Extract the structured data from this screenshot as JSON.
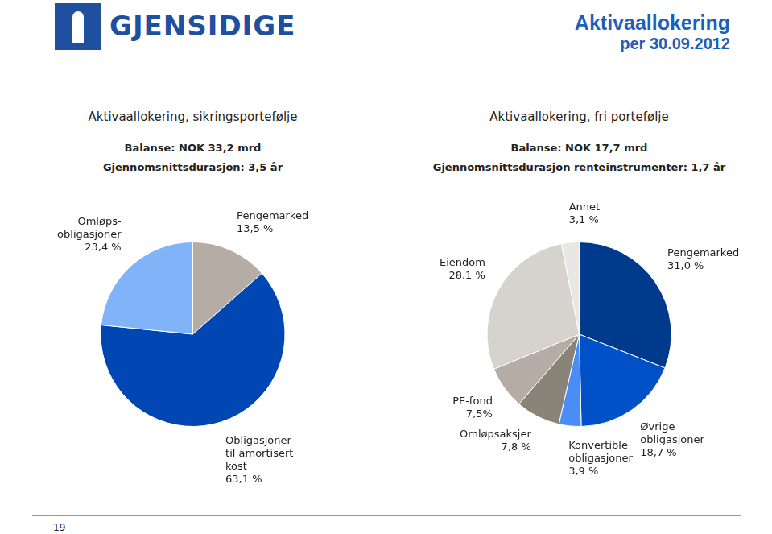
{
  "header": {
    "logo": "GJENSIDIGE",
    "title": "Aktivaallokering",
    "subtitle": "per 30.09.2012"
  },
  "page_number": "19",
  "chart_data": [
    {
      "type": "pie",
      "title": "Aktivaallokering, sikringsportefølje",
      "subtitle": [
        "Balanse: NOK 33,2 mrd",
        "Gjennomsnittsdurasjon: 3,5 år"
      ],
      "categories": [
        [
          "Pengemarked"
        ],
        [
          "Obligasjoner",
          "til amortisert",
          "kost"
        ],
        [
          "Omløps-",
          "obligasjoner"
        ]
      ],
      "values": [
        13.5,
        63.1,
        23.4
      ],
      "value_labels": [
        "13,5 %",
        "63,1 %",
        "23,4 %"
      ],
      "colors": [
        "#b5aca6",
        "#0047b3",
        "#80b3f7"
      ],
      "data_labels": true
    },
    {
      "type": "pie",
      "title": "Aktivaallokering, fri portefølje",
      "subtitle": [
        "Balanse: NOK 17,7 mrd",
        "Gjennomsnittsdurasjon renteinstrumenter: 1,7 år"
      ],
      "categories": [
        [
          "Pengemarked"
        ],
        [
          "Øvrige",
          "obligasjoner"
        ],
        [
          "Konvertible",
          "obligasjoner"
        ],
        [
          "Omløpsaksjer"
        ],
        [
          "PE-fond"
        ],
        [
          "Eiendom"
        ],
        [
          "Annet"
        ]
      ],
      "values": [
        31.0,
        18.7,
        3.9,
        7.8,
        7.5,
        28.1,
        3.1
      ],
      "value_labels": [
        "31,0 %",
        "18,7 %",
        "3,9 %",
        "7,8 %",
        "7,5%",
        "28,1 %",
        "3,1 %"
      ],
      "colors": [
        "#003a8c",
        "#0050c8",
        "#4a8ef5",
        "#8a8378",
        "#b5aca6",
        "#d6d3cf",
        "#e8e7e5"
      ],
      "data_labels": true
    }
  ]
}
